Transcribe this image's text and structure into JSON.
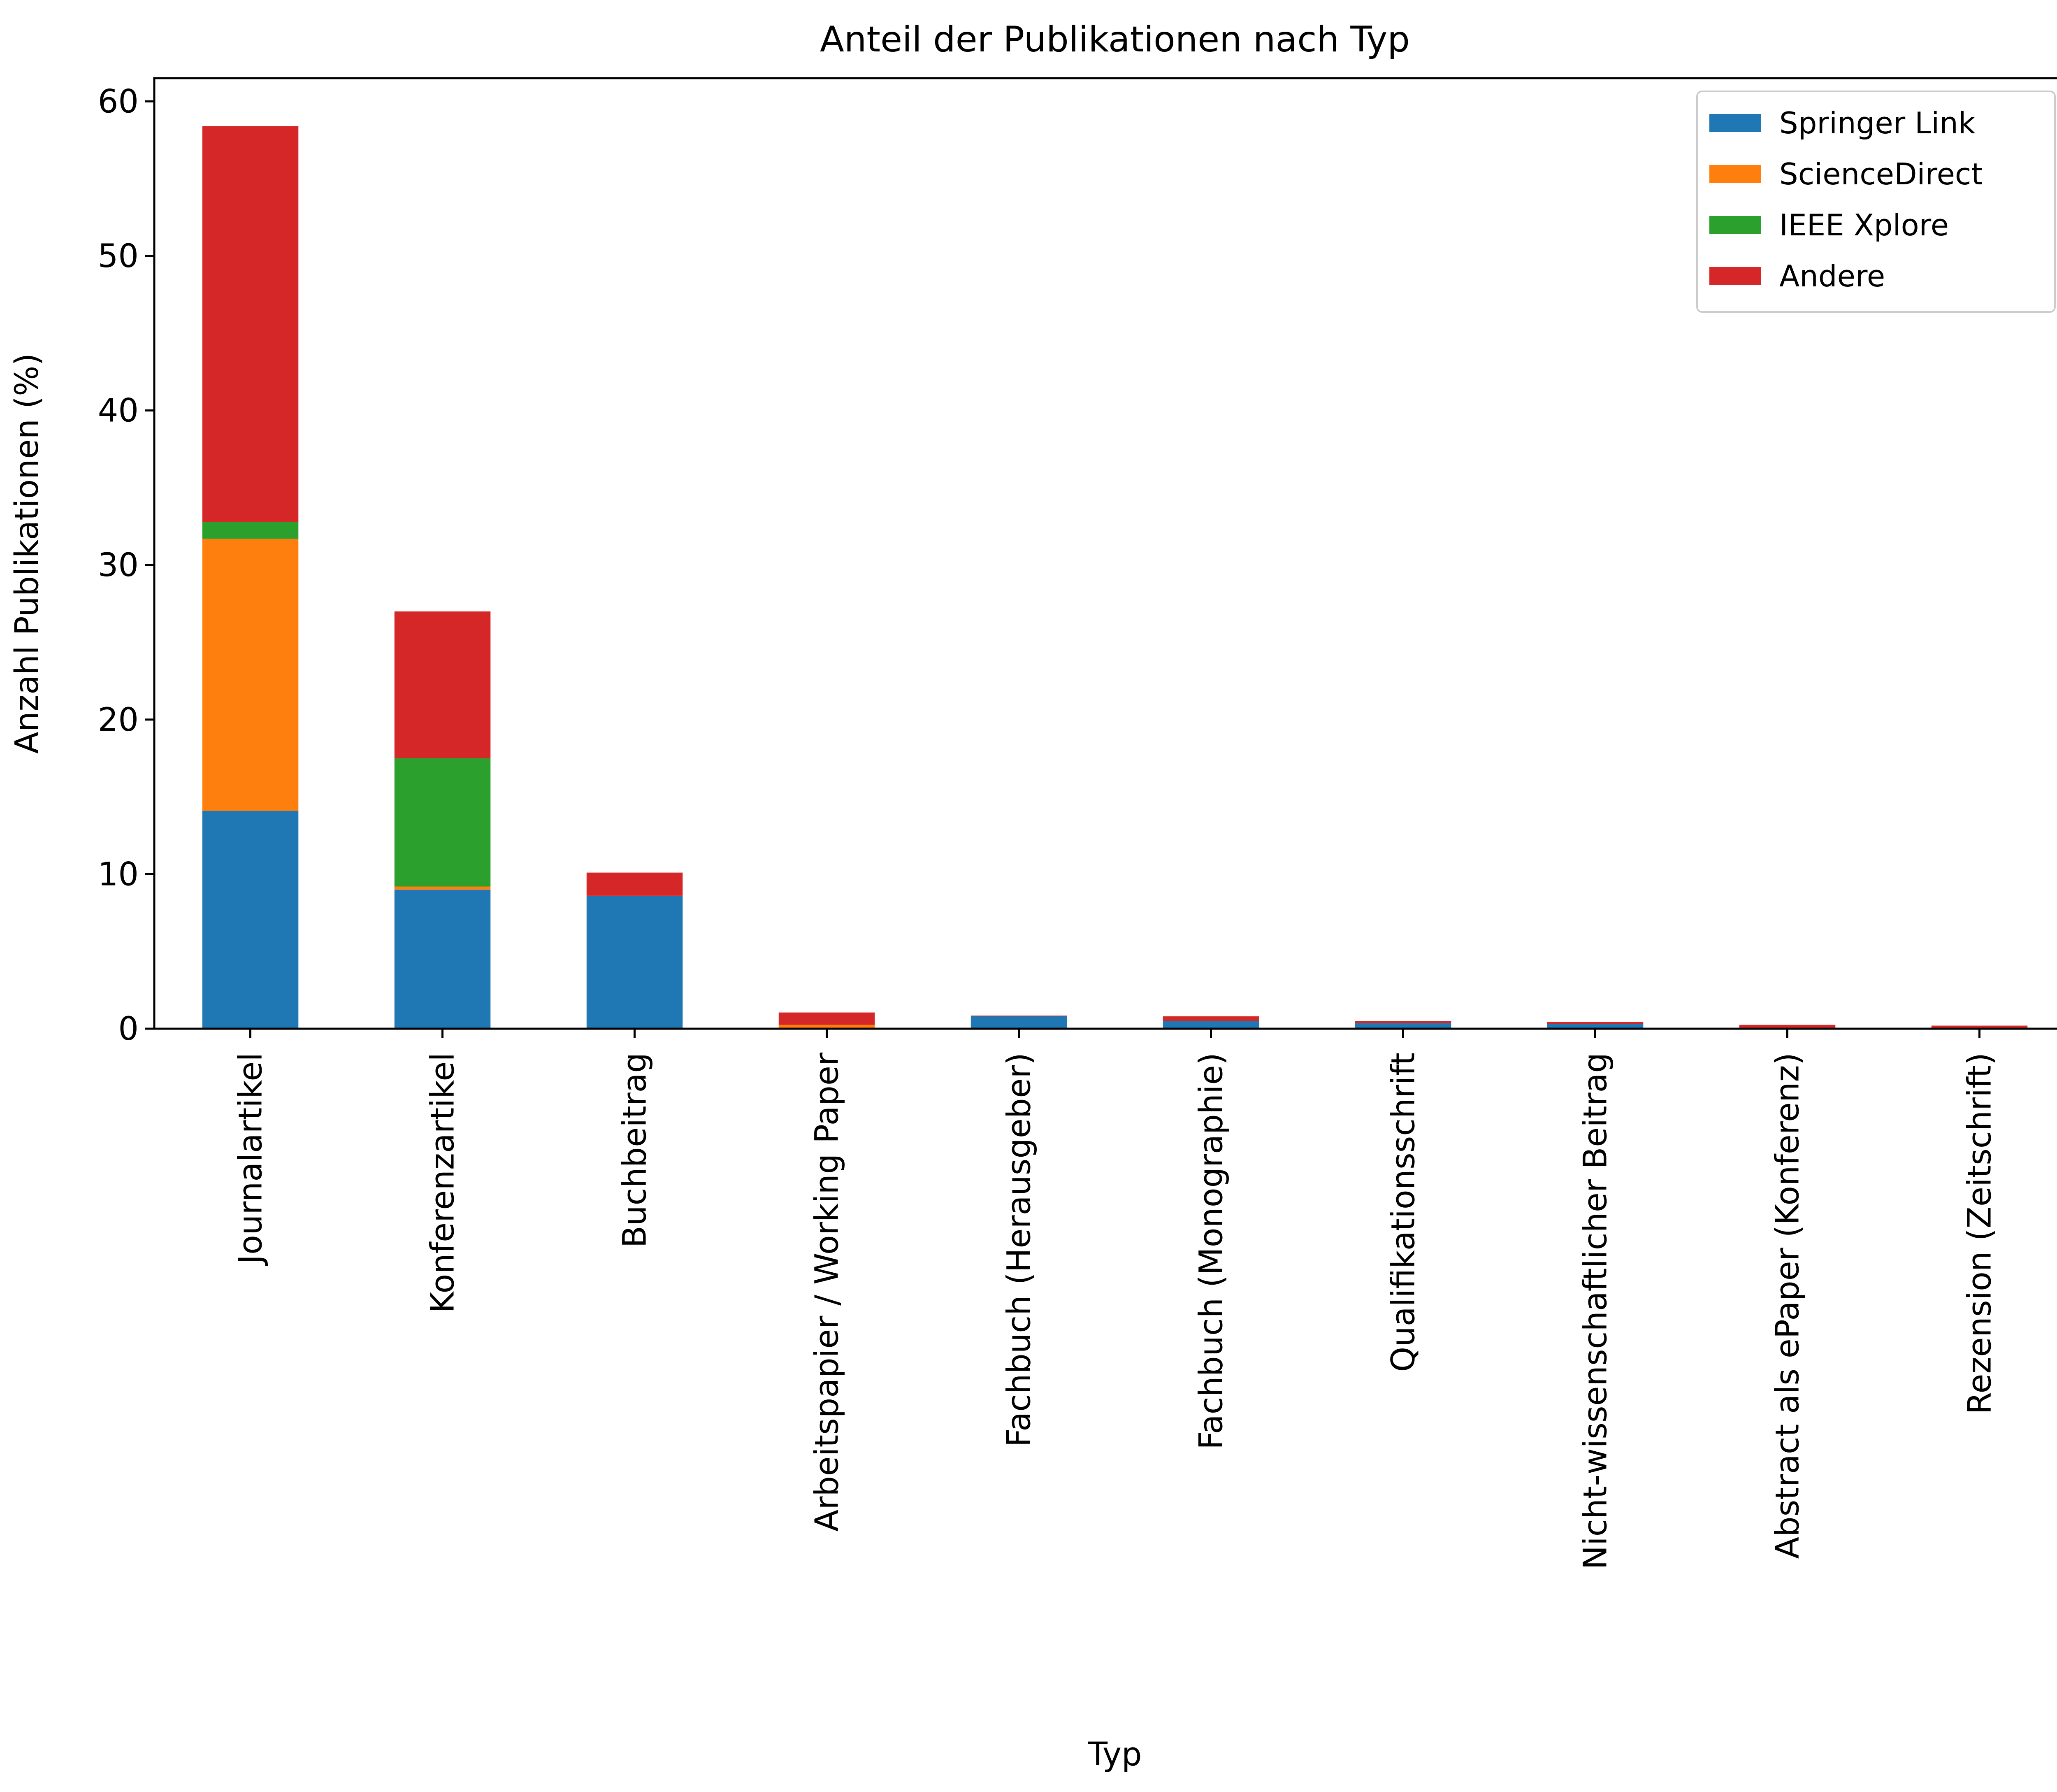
{
  "chart_data": {
    "type": "bar",
    "stacked": true,
    "title": "Anteil der Publikationen nach Typ",
    "xlabel": "Typ",
    "ylabel": "Anzahl Publikationen (%)",
    "ylim": [
      0,
      61.5
    ],
    "yticks": [
      0,
      10,
      20,
      30,
      40,
      50,
      60
    ],
    "grid": false,
    "legend_position": "top-right",
    "categories": [
      "Journalartikel",
      "Konferenzartikel",
      "Buchbeitrag",
      "Arbeitspapier / Working Paper",
      "Fachbuch (Herausgeber)",
      "Fachbuch (Monographie)",
      "Qualifikationsschrift",
      "Nicht-wissenschaftlicher Beitrag",
      "Abstract als ePaper (Konferenz)",
      "Rezension (Zeitschrift)"
    ],
    "series": [
      {
        "name": "Springer Link",
        "color": "#1f77b4",
        "values": [
          14.1,
          9.0,
          8.6,
          0.05,
          0.8,
          0.5,
          0.35,
          0.3,
          0.05,
          0.05
        ]
      },
      {
        "name": "ScienceDirect",
        "color": "#ff7f0e",
        "values": [
          17.6,
          0.2,
          0.0,
          0.2,
          0.0,
          0.0,
          0.0,
          0.0,
          0.0,
          0.0
        ]
      },
      {
        "name": "IEEE Xplore",
        "color": "#2ca02c",
        "values": [
          1.1,
          8.3,
          0.0,
          0.0,
          0.0,
          0.0,
          0.0,
          0.0,
          0.0,
          0.0
        ]
      },
      {
        "name": "Andere",
        "color": "#d62728",
        "values": [
          25.6,
          9.5,
          1.5,
          0.8,
          0.05,
          0.3,
          0.15,
          0.15,
          0.2,
          0.15
        ]
      }
    ]
  }
}
